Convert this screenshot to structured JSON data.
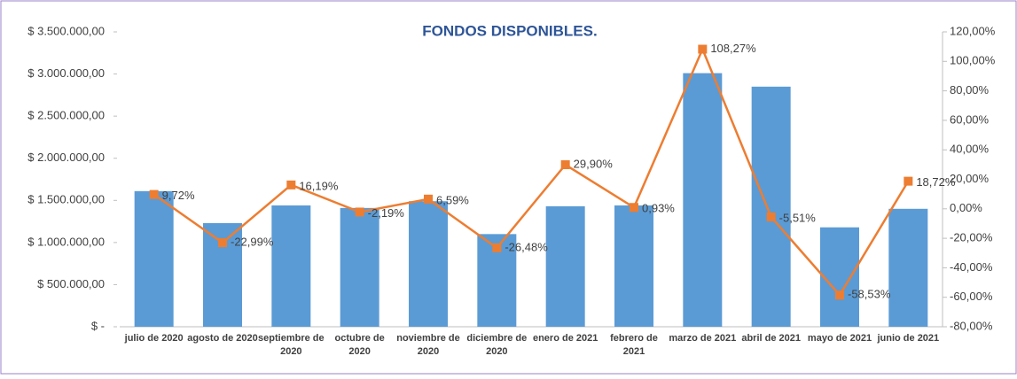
{
  "chart_data": {
    "type": "bar_line",
    "title": "FONDOS DISPONIBLES.",
    "categories": [
      "julio de 2020",
      "agosto de 2020",
      "septiembre de 2020",
      "octubre de 2020",
      "noviembre de 2020",
      "diciembre de 2020",
      "enero de 2021",
      "febrero de 2021",
      "marzo de 2021",
      "abril de 2021",
      "mayo de 2021",
      "junio de 2021"
    ],
    "series": [
      {
        "type": "bar",
        "color": "#5b9bd5",
        "values": [
          1610000,
          1230000,
          1440000,
          1410000,
          1490000,
          1100000,
          1430000,
          1440000,
          3010000,
          2850000,
          1180000,
          1400000
        ]
      },
      {
        "type": "line",
        "axis": "y2",
        "color": "#ed7d31",
        "values": [
          9.72,
          -22.99,
          16.19,
          -2.19,
          6.59,
          -26.48,
          29.9,
          0.93,
          108.27,
          -5.51,
          -58.53,
          18.72
        ],
        "value_labels": [
          "9,72%",
          "-22,99%",
          "16,19%",
          "-2,19%",
          "6,59%",
          "-26,48%",
          "29,90%",
          "0,93%",
          "108,27%",
          "-5,51%",
          "-58,53%",
          "18,72%"
        ]
      }
    ],
    "ylim": [
      0,
      3500000
    ],
    "yticks": [
      {
        "value": 0,
        "label": "$ -"
      },
      {
        "value": 500000,
        "label": "$ 500.000,00"
      },
      {
        "value": 1000000,
        "label": "$ 1.000.000,00"
      },
      {
        "value": 1500000,
        "label": "$ 1.500.000,00"
      },
      {
        "value": 2000000,
        "label": "$ 2.000.000,00"
      },
      {
        "value": 2500000,
        "label": "$ 2.500.000,00"
      },
      {
        "value": 3000000,
        "label": "$ 3.000.000,00"
      },
      {
        "value": 3500000,
        "label": "$ 3.500.000,00"
      }
    ],
    "y2lim": [
      -80,
      120
    ],
    "y2ticks": [
      {
        "value": -80,
        "label": "-80,00%"
      },
      {
        "value": -60,
        "label": "-60,00%"
      },
      {
        "value": -40,
        "label": "-40,00%"
      },
      {
        "value": -20,
        "label": "-20,00%"
      },
      {
        "value": 0,
        "label": "0,00%"
      },
      {
        "value": 20,
        "label": "20,00%"
      },
      {
        "value": 40,
        "label": "40,00%"
      },
      {
        "value": 60,
        "label": "60,00%"
      },
      {
        "value": 80,
        "label": "80,00%"
      },
      {
        "value": 100,
        "label": "100,00%"
      },
      {
        "value": 120,
        "label": "120,00%"
      }
    ]
  }
}
